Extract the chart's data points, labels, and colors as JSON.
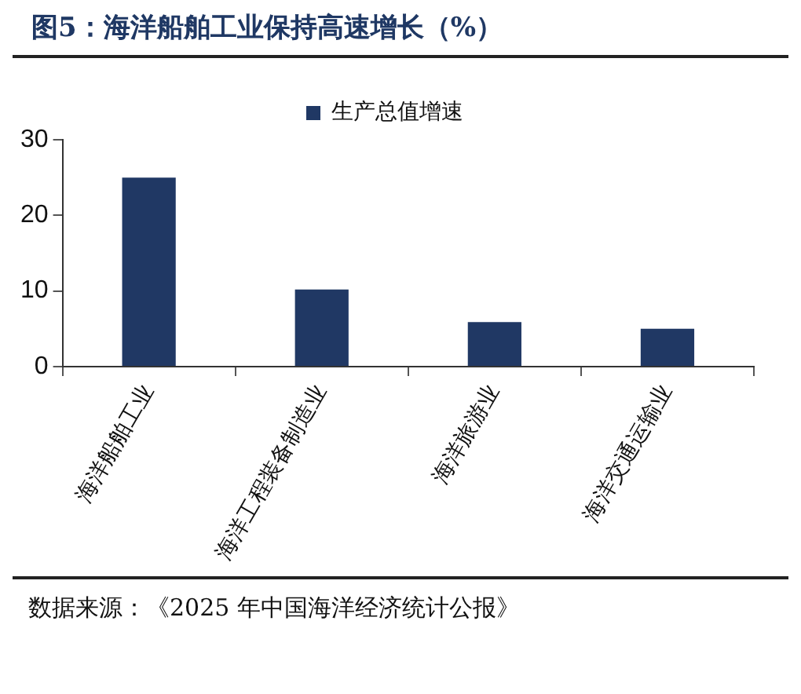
{
  "chart_data": {
    "type": "bar",
    "title": "图5：海洋船舶工业保持高速增长（%）",
    "categories": [
      "海洋船舶工业",
      "海洋工程装备制造业",
      "海洋旅游业",
      "海洋交通运输业"
    ],
    "series": [
      {
        "name": "生产总值增速",
        "color": "#203864",
        "values": [
          25.0,
          10.2,
          5.9,
          5.0
        ]
      }
    ],
    "ylim": [
      0,
      30
    ],
    "yticks": [
      0,
      10,
      20,
      30
    ],
    "grid": false,
    "legend": "top",
    "annotations": [
      "数据来源：《2025 年中国海洋经济统计公报》"
    ]
  }
}
